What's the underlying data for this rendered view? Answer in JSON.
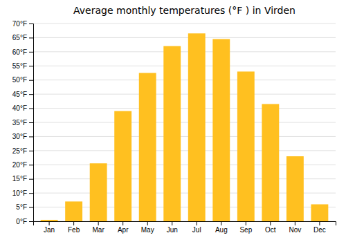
{
  "chart_data": {
    "type": "bar",
    "title": "Average monthly temperatures (°F ) in Virden",
    "categories": [
      "Jan",
      "Feb",
      "Mar",
      "Apr",
      "May",
      "Jun",
      "Jul",
      "Aug",
      "Sep",
      "Oct",
      "Nov",
      "Dec"
    ],
    "values": [
      0.5,
      7.0,
      20.5,
      39.0,
      52.5,
      62.0,
      66.5,
      64.5,
      53.0,
      41.5,
      23.0,
      6.0
    ],
    "color": "#FFC020",
    "ylim": [
      0,
      70
    ],
    "yticks": [
      {
        "value": 0,
        "label": "0°F"
      },
      {
        "value": 5,
        "label": "5°F"
      },
      {
        "value": 10,
        "label": "10°F"
      },
      {
        "value": 15,
        "label": "15°F"
      },
      {
        "value": 20,
        "label": "20°F"
      },
      {
        "value": 25,
        "label": "25°F"
      },
      {
        "value": 30,
        "label": "30°F"
      },
      {
        "value": 35,
        "label": "35°F"
      },
      {
        "value": 40,
        "label": "40°F"
      },
      {
        "value": 45,
        "label": "45°F"
      },
      {
        "value": 50,
        "label": "50°F"
      },
      {
        "value": 55,
        "label": "55°F"
      },
      {
        "value": 60,
        "label": "60°F"
      },
      {
        "value": 65,
        "label": "65°F"
      },
      {
        "value": 70,
        "label": "70°F"
      }
    ],
    "grid": true
  }
}
